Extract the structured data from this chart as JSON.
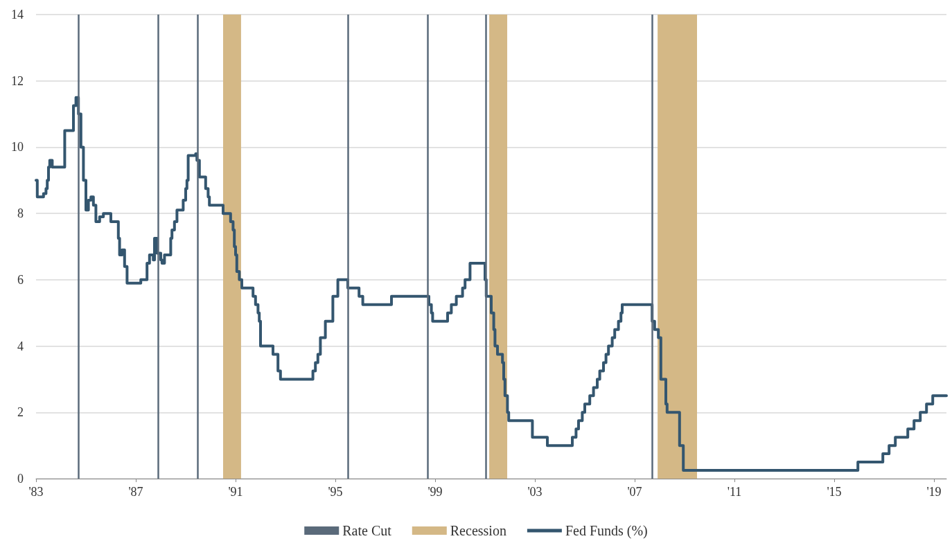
{
  "chart_data": {
    "type": "step",
    "ylim": [
      0,
      14
    ],
    "yticks": [
      0,
      2,
      4,
      6,
      8,
      10,
      12,
      14
    ],
    "xlim": [
      1983,
      2019.5
    ],
    "xticks": [
      {
        "value": 1983,
        "label": "'83"
      },
      {
        "value": 1987,
        "label": "'87"
      },
      {
        "value": 1991,
        "label": "'91"
      },
      {
        "value": 1995,
        "label": "'95"
      },
      {
        "value": 1999,
        "label": "'99"
      },
      {
        "value": 2003,
        "label": "'03"
      },
      {
        "value": 2007,
        "label": "'07"
      },
      {
        "value": 2011,
        "label": "'11"
      },
      {
        "value": 2015,
        "label": "'15"
      },
      {
        "value": 2019,
        "label": "'19"
      }
    ],
    "grid": "y",
    "legend": "bottom",
    "marker": "none",
    "line_style": "solid",
    "series": [
      {
        "name": "Fed Funds (%)",
        "color": "#34566f",
        "x": [
          1983.0,
          1983.05,
          1983.3,
          1983.4,
          1983.45,
          1983.5,
          1983.55,
          1983.65,
          1984.15,
          1984.5,
          1984.6,
          1984.7,
          1984.8,
          1984.9,
          1985.0,
          1985.1,
          1985.2,
          1985.3,
          1985.4,
          1985.55,
          1985.7,
          1986.0,
          1986.3,
          1986.35,
          1986.45,
          1986.55,
          1986.65,
          1987.2,
          1987.45,
          1987.55,
          1987.7,
          1987.75,
          1987.85,
          1988.0,
          1988.05,
          1988.15,
          1988.4,
          1988.45,
          1988.55,
          1988.65,
          1988.9,
          1989.0,
          1989.05,
          1989.1,
          1989.4,
          1989.45,
          1989.55,
          1989.8,
          1989.9,
          1989.95,
          1990.5,
          1990.8,
          1990.9,
          1990.95,
          1991.0,
          1991.05,
          1991.15,
          1991.25,
          1991.7,
          1991.8,
          1991.9,
          1991.95,
          1992.0,
          1992.5,
          1992.7,
          1992.8,
          1994.1,
          1994.2,
          1994.3,
          1994.4,
          1994.6,
          1994.9,
          1995.1,
          1995.5,
          1995.95,
          1996.1,
          1997.25,
          1998.75,
          1998.85,
          1998.9,
          1999.5,
          1999.65,
          1999.85,
          2000.1,
          2000.2,
          2000.4,
          2001.0,
          2001.05,
          2001.25,
          2001.35,
          2001.4,
          2001.5,
          2001.7,
          2001.75,
          2001.8,
          2001.9,
          2001.95,
          2002.9,
          2003.5,
          2004.5,
          2004.65,
          2004.75,
          2004.9,
          2005.0,
          2005.2,
          2005.35,
          2005.5,
          2005.6,
          2005.75,
          2005.85,
          2005.95,
          2006.1,
          2006.2,
          2006.35,
          2006.45,
          2006.5,
          2007.7,
          2007.8,
          2007.95,
          2008.05,
          2008.25,
          2008.3,
          2008.8,
          2008.95,
          2015.95,
          2016.95,
          2017.2,
          2017.45,
          2017.95,
          2018.2,
          2018.45,
          2018.7,
          2018.95,
          2019.5
        ],
        "values": [
          9.0,
          8.5,
          8.6,
          8.75,
          9.0,
          9.4,
          9.6,
          9.4,
          10.5,
          11.25,
          11.5,
          11.0,
          10.0,
          9.0,
          8.1,
          8.4,
          8.5,
          8.25,
          7.75,
          7.9,
          8.0,
          7.75,
          7.25,
          6.75,
          6.9,
          6.4,
          5.9,
          6.0,
          6.5,
          6.75,
          6.6,
          7.25,
          6.8,
          6.6,
          6.5,
          6.75,
          7.25,
          7.5,
          7.75,
          8.1,
          8.4,
          8.75,
          9.0,
          9.75,
          9.8,
          9.6,
          9.1,
          8.75,
          8.5,
          8.25,
          8.0,
          7.75,
          7.5,
          7.0,
          6.75,
          6.25,
          6.0,
          5.75,
          5.5,
          5.25,
          5.0,
          4.75,
          4.0,
          3.75,
          3.25,
          3.0,
          3.25,
          3.5,
          3.75,
          4.25,
          4.75,
          5.5,
          6.0,
          5.75,
          5.5,
          5.25,
          5.5,
          5.25,
          5.0,
          4.75,
          5.0,
          5.25,
          5.5,
          5.75,
          6.0,
          6.5,
          6.0,
          5.5,
          5.0,
          4.5,
          4.0,
          3.75,
          3.5,
          3.0,
          2.5,
          2.0,
          1.75,
          1.25,
          1.0,
          1.25,
          1.5,
          1.75,
          2.0,
          2.25,
          2.5,
          2.75,
          3.0,
          3.25,
          3.5,
          3.75,
          4.0,
          4.25,
          4.5,
          4.75,
          5.0,
          5.25,
          4.75,
          4.5,
          4.25,
          3.0,
          2.25,
          2.0,
          1.0,
          0.25,
          0.5,
          0.75,
          1.0,
          1.25,
          1.5,
          1.75,
          2.0,
          2.25,
          2.5,
          2.5
        ]
      }
    ],
    "ref_lines": [
      {
        "axis": "x",
        "value": 1984.69,
        "label": "Rate Cut",
        "color": "#5a6a7a"
      },
      {
        "axis": "x",
        "value": 1987.89,
        "color": "#5a6a7a"
      },
      {
        "axis": "x",
        "value": 1989.47,
        "color": "#5a6a7a"
      },
      {
        "axis": "x",
        "value": 1995.5,
        "color": "#5a6a7a"
      },
      {
        "axis": "x",
        "value": 1998.69,
        "color": "#5a6a7a"
      },
      {
        "axis": "x",
        "value": 2001.03,
        "color": "#5a6a7a"
      },
      {
        "axis": "x",
        "value": 2007.69,
        "color": "#5a6a7a"
      }
    ],
    "bands": [
      {
        "axis": "x",
        "from": 1990.5,
        "to": 1991.22,
        "label": "Recession",
        "color": "#d4b886"
      },
      {
        "axis": "x",
        "from": 2001.17,
        "to": 2001.89,
        "color": "#d4b886"
      },
      {
        "axis": "x",
        "from": 2007.92,
        "to": 2009.5,
        "color": "#d4b886"
      }
    ]
  }
}
